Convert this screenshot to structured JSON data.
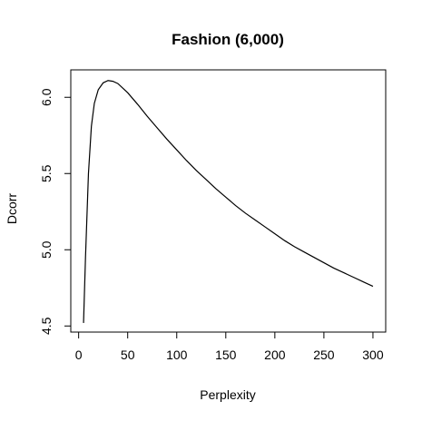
{
  "chart_data": {
    "type": "line",
    "title": "Fashion (6,000)",
    "xlabel": "Perplexity",
    "ylabel": "Dcorr",
    "xlim": [
      -8,
      313
    ],
    "ylim": [
      4.46,
      6.18
    ],
    "xticks": [
      0,
      50,
      100,
      150,
      200,
      250,
      300
    ],
    "yticks": [
      4.5,
      5.0,
      5.5,
      6.0
    ],
    "xtick_labels": [
      "0",
      "50",
      "100",
      "150",
      "200",
      "250",
      "300"
    ],
    "ytick_labels": [
      "4.5",
      "5.0",
      "5.5",
      "6.0"
    ],
    "grid": false,
    "series": [
      {
        "x": [
          5,
          7,
          10,
          13,
          16,
          20,
          25,
          30,
          35,
          40,
          50,
          60,
          70,
          80,
          90,
          100,
          110,
          120,
          130,
          140,
          150,
          160,
          170,
          180,
          190,
          200,
          210,
          220,
          230,
          240,
          250,
          260,
          270,
          280,
          290,
          300
        ],
        "y": [
          4.52,
          4.95,
          5.5,
          5.81,
          5.96,
          6.05,
          6.095,
          6.11,
          6.105,
          6.09,
          6.03,
          5.955,
          5.875,
          5.8,
          5.725,
          5.655,
          5.585,
          5.52,
          5.46,
          5.4,
          5.345,
          5.29,
          5.24,
          5.195,
          5.15,
          5.105,
          5.06,
          5.02,
          4.985,
          4.95,
          4.915,
          4.88,
          4.85,
          4.82,
          4.79,
          4.76
        ]
      }
    ]
  }
}
